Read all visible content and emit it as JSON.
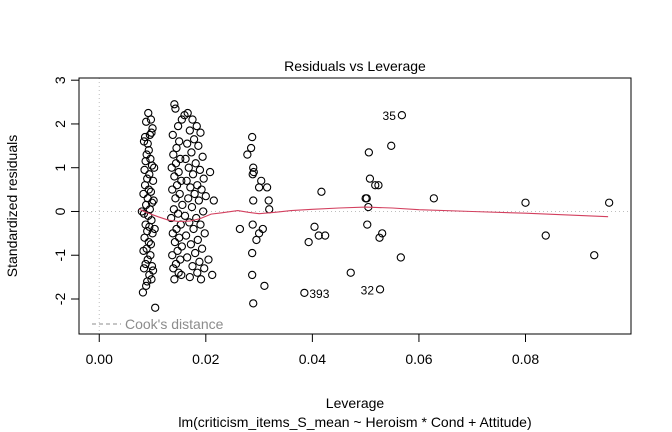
{
  "chart_data": {
    "type": "scatter",
    "title": "Residuals vs Leverage",
    "xlabel": "Leverage",
    "subtitle": "lm(criticism_items_S_mean ~ Heroism * Cond + Attitude)",
    "ylabel": "Standardized residuals",
    "xlim": [
      -0.0038,
      0.0998
    ],
    "ylim": [
      -2.8,
      3.05
    ],
    "xticks": [
      0.0,
      0.02,
      0.04,
      0.06,
      0.08
    ],
    "xtick_labels": [
      "0.00",
      "0.02",
      "0.04",
      "0.06",
      "0.08"
    ],
    "yticks": [
      -2,
      -1,
      0,
      1,
      2,
      3
    ],
    "ytick_labels": [
      "-2",
      "-1",
      "0",
      "1",
      "2",
      "3"
    ],
    "grid": false,
    "reference_lines": {
      "h_zero": 0,
      "v_zero": 0,
      "style": "dotted",
      "color": "#bebebe"
    },
    "legend": {
      "position": "bottom-left",
      "entries": [
        {
          "label": "Cook's distance",
          "style": "dashed",
          "color": "#8c8c8c"
        }
      ]
    },
    "smooth_color": "#d3405f",
    "smooth": [
      [
        0.0075,
        0.05
      ],
      [
        0.009,
        -0.03
      ],
      [
        0.011,
        -0.12
      ],
      [
        0.013,
        -0.2
      ],
      [
        0.015,
        -0.23
      ],
      [
        0.017,
        -0.22
      ],
      [
        0.019,
        -0.16
      ],
      [
        0.021,
        -0.06
      ],
      [
        0.023,
        -0.03
      ],
      [
        0.026,
        0.02
      ],
      [
        0.028,
        -0.02
      ],
      [
        0.03,
        -0.05
      ],
      [
        0.033,
        -0.02
      ],
      [
        0.036,
        0.02
      ],
      [
        0.04,
        0.05
      ],
      [
        0.045,
        0.08
      ],
      [
        0.05,
        0.1
      ],
      [
        0.055,
        0.08
      ],
      [
        0.06,
        0.04
      ],
      [
        0.07,
        0.0
      ],
      [
        0.08,
        -0.04
      ],
      [
        0.09,
        -0.09
      ],
      [
        0.0955,
        -0.12
      ]
    ],
    "labeled_points": [
      {
        "label": "35",
        "x": 0.0568,
        "y": 2.2,
        "side": "left"
      },
      {
        "label": "393",
        "x": 0.0385,
        "y": -1.86,
        "side": "right"
      },
      {
        "label": "32",
        "x": 0.0527,
        "y": -1.78,
        "side": "left"
      }
    ],
    "points": [
      [
        0.0092,
        2.25
      ],
      [
        0.0088,
        2.05
      ],
      [
        0.0097,
        2.1
      ],
      [
        0.01,
        1.9
      ],
      [
        0.0095,
        1.75
      ],
      [
        0.0086,
        1.7
      ],
      [
        0.0098,
        1.8
      ],
      [
        0.0091,
        1.55
      ],
      [
        0.0084,
        1.6
      ],
      [
        0.0093,
        1.4
      ],
      [
        0.0089,
        1.3
      ],
      [
        0.0096,
        1.2
      ],
      [
        0.0087,
        1.15
      ],
      [
        0.0099,
        1.05
      ],
      [
        0.0085,
        0.95
      ],
      [
        0.0094,
        0.85
      ],
      [
        0.009,
        0.75
      ],
      [
        0.0101,
        0.7
      ],
      [
        0.0086,
        0.6
      ],
      [
        0.0093,
        0.5
      ],
      [
        0.0097,
        0.45
      ],
      [
        0.0083,
        0.4
      ],
      [
        0.0091,
        0.3
      ],
      [
        0.0099,
        0.2
      ],
      [
        0.0088,
        0.15
      ],
      [
        0.0095,
        0.05
      ],
      [
        0.0084,
        -0.05
      ],
      [
        0.0092,
        -0.1
      ],
      [
        0.0098,
        -0.2
      ],
      [
        0.0087,
        -0.3
      ],
      [
        0.0094,
        -0.35
      ],
      [
        0.009,
        -0.45
      ],
      [
        0.01,
        -0.5
      ],
      [
        0.0085,
        -0.6
      ],
      [
        0.0093,
        -0.7
      ],
      [
        0.0097,
        -0.75
      ],
      [
        0.0089,
        -0.85
      ],
      [
        0.0083,
        -0.9
      ],
      [
        0.0096,
        -1.0
      ],
      [
        0.0091,
        -1.1
      ],
      [
        0.0087,
        -1.2
      ],
      [
        0.0099,
        -1.25
      ],
      [
        0.0084,
        -1.3
      ],
      [
        0.0094,
        -1.45
      ],
      [
        0.009,
        -1.6
      ],
      [
        0.0098,
        -1.55
      ],
      [
        0.0088,
        -1.7
      ],
      [
        0.0082,
        -1.85
      ],
      [
        0.0105,
        -2.2
      ],
      [
        0.0103,
        1.0
      ],
      [
        0.0102,
        0.25
      ],
      [
        0.0104,
        -0.4
      ],
      [
        0.0101,
        -1.35
      ],
      [
        0.008,
        0.0
      ],
      [
        0.0141,
        2.45
      ],
      [
        0.0143,
        2.35
      ],
      [
        0.0155,
        2.1
      ],
      [
        0.0148,
        1.95
      ],
      [
        0.0138,
        1.75
      ],
      [
        0.015,
        1.6
      ],
      [
        0.0145,
        1.45
      ],
      [
        0.0139,
        1.3
      ],
      [
        0.0152,
        1.2
      ],
      [
        0.0144,
        1.1
      ],
      [
        0.0136,
        1.0
      ],
      [
        0.0149,
        0.9
      ],
      [
        0.0141,
        0.8
      ],
      [
        0.0154,
        0.7
      ],
      [
        0.0146,
        0.6
      ],
      [
        0.0137,
        0.5
      ],
      [
        0.0151,
        0.4
      ],
      [
        0.0143,
        0.3
      ],
      [
        0.0156,
        0.15
      ],
      [
        0.014,
        0.05
      ],
      [
        0.0148,
        -0.05
      ],
      [
        0.0135,
        -0.15
      ],
      [
        0.0153,
        -0.3
      ],
      [
        0.0145,
        -0.4
      ],
      [
        0.0138,
        -0.5
      ],
      [
        0.015,
        -0.6
      ],
      [
        0.0142,
        -0.7
      ],
      [
        0.0155,
        -0.8
      ],
      [
        0.0147,
        -0.9
      ],
      [
        0.0137,
        -1.0
      ],
      [
        0.0152,
        -1.1
      ],
      [
        0.0144,
        -1.2
      ],
      [
        0.0139,
        -1.3
      ],
      [
        0.0149,
        -1.4
      ],
      [
        0.0141,
        -1.55
      ],
      [
        0.0154,
        -1.45
      ],
      [
        0.016,
        2.2
      ],
      [
        0.0166,
        2.25
      ],
      [
        0.0175,
        2.1
      ],
      [
        0.0183,
        1.95
      ],
      [
        0.017,
        1.85
      ],
      [
        0.019,
        1.8
      ],
      [
        0.0178,
        1.65
      ],
      [
        0.0165,
        1.55
      ],
      [
        0.0186,
        1.5
      ],
      [
        0.0173,
        1.35
      ],
      [
        0.0194,
        1.25
      ],
      [
        0.0162,
        1.2
      ],
      [
        0.0181,
        1.1
      ],
      [
        0.0168,
        1.0
      ],
      [
        0.0189,
        0.95
      ],
      [
        0.0176,
        0.85
      ],
      [
        0.0196,
        0.75
      ],
      [
        0.0164,
        0.7
      ],
      [
        0.0184,
        0.6
      ],
      [
        0.0171,
        0.55
      ],
      [
        0.0192,
        0.5
      ],
      [
        0.0179,
        0.4
      ],
      [
        0.02,
        0.35
      ],
      [
        0.0167,
        0.3
      ],
      [
        0.0187,
        0.25
      ],
      [
        0.0174,
        0.1
      ],
      [
        0.0195,
        0.0
      ],
      [
        0.0161,
        -0.1
      ],
      [
        0.0182,
        -0.15
      ],
      [
        0.0169,
        -0.25
      ],
      [
        0.019,
        -0.3
      ],
      [
        0.0177,
        -0.4
      ],
      [
        0.0198,
        -0.5
      ],
      [
        0.0163,
        -0.55
      ],
      [
        0.0185,
        -0.65
      ],
      [
        0.0172,
        -0.75
      ],
      [
        0.0193,
        -0.85
      ],
      [
        0.018,
        -0.95
      ],
      [
        0.0165,
        -1.05
      ],
      [
        0.0188,
        -1.15
      ],
      [
        0.0175,
        -1.25
      ],
      [
        0.0197,
        -1.3
      ],
      [
        0.0184,
        -1.4
      ],
      [
        0.017,
        -1.5
      ],
      [
        0.0191,
        -1.55
      ],
      [
        0.0208,
        0.9
      ],
      [
        0.0212,
        -1.45
      ],
      [
        0.0205,
        -1.1
      ],
      [
        0.0215,
        0.25
      ],
      [
        0.0287,
        1.7
      ],
      [
        0.0285,
        1.45
      ],
      [
        0.0278,
        1.3
      ],
      [
        0.0289,
        1.0
      ],
      [
        0.029,
        0.9
      ],
      [
        0.0288,
        0.85
      ],
      [
        0.0304,
        0.7
      ],
      [
        0.03,
        0.55
      ],
      [
        0.0289,
        0.25
      ],
      [
        0.0315,
        0.55
      ],
      [
        0.0318,
        0.25
      ],
      [
        0.0319,
        0.05
      ],
      [
        0.0264,
        -0.4
      ],
      [
        0.0288,
        -0.3
      ],
      [
        0.03,
        -0.5
      ],
      [
        0.0307,
        -0.4
      ],
      [
        0.0295,
        -0.65
      ],
      [
        0.0287,
        -0.95
      ],
      [
        0.0287,
        -1.45
      ],
      [
        0.031,
        -1.7
      ],
      [
        0.0289,
        -2.1
      ],
      [
        0.0393,
        -0.7
      ],
      [
        0.0404,
        -0.35
      ],
      [
        0.0412,
        -0.55
      ],
      [
        0.0417,
        0.45
      ],
      [
        0.0424,
        -0.55
      ],
      [
        0.0385,
        -1.86
      ],
      [
        0.0472,
        -1.4
      ],
      [
        0.05,
        0.3
      ],
      [
        0.0502,
        0.3
      ],
      [
        0.0505,
        0.1
      ],
      [
        0.0503,
        -0.3
      ],
      [
        0.0506,
        1.35
      ],
      [
        0.0508,
        0.75
      ],
      [
        0.0518,
        0.6
      ],
      [
        0.0524,
        0.6
      ],
      [
        0.0526,
        -0.6
      ],
      [
        0.0531,
        -0.5
      ],
      [
        0.0548,
        1.5
      ],
      [
        0.0566,
        -1.05
      ],
      [
        0.0568,
        2.2
      ],
      [
        0.0527,
        -1.78
      ],
      [
        0.0628,
        0.3
      ],
      [
        0.08,
        0.2
      ],
      [
        0.0838,
        -0.55
      ],
      [
        0.0929,
        -1.0
      ],
      [
        0.0957,
        0.2
      ]
    ]
  }
}
